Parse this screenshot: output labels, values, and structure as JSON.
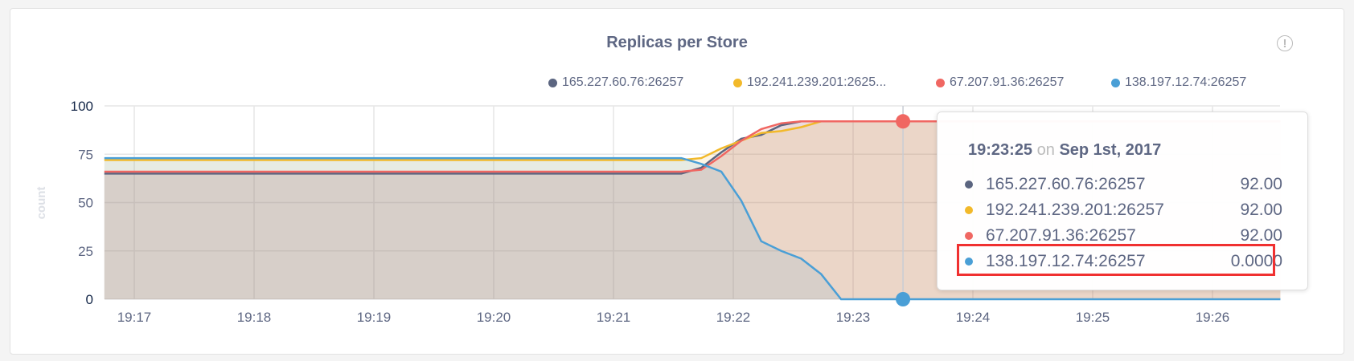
{
  "chart_data": {
    "type": "area",
    "title": "Replicas per Store",
    "xlabel": "",
    "ylabel": "count",
    "ylim": [
      0,
      100
    ],
    "yticks": [
      "0",
      "25",
      "50",
      "75",
      "100"
    ],
    "xlim": [
      "19:16:45",
      "19:26:34"
    ],
    "xticks": [
      "19:17",
      "19:18",
      "19:19",
      "19:20",
      "19:21",
      "19:22",
      "19:23",
      "19:24",
      "19:25",
      "19:26"
    ],
    "grid": true,
    "legend_position": "top-right",
    "series": [
      {
        "name": "165.227.60.76:26257",
        "legend_label": "165.227.60.76:26257",
        "color": "#5b6580",
        "x": [
          "19:16:45",
          "19:21:34",
          "19:21:44",
          "19:21:54",
          "19:22:04",
          "19:22:14",
          "19:22:24",
          "19:22:34",
          "19:26:34"
        ],
        "y": [
          65,
          65,
          68,
          76,
          83,
          85,
          90,
          92,
          92
        ]
      },
      {
        "name": "192.241.239.201:26257",
        "legend_label": "192.241.239.201:2625...",
        "color": "#f2b92a",
        "x": [
          "19:16:45",
          "19:21:34",
          "19:21:44",
          "19:21:54",
          "19:22:04",
          "19:22:14",
          "19:22:24",
          "19:22:34",
          "19:22:44",
          "19:26:34"
        ],
        "y": [
          72,
          72,
          73,
          78,
          82,
          86,
          87,
          89,
          92,
          92
        ]
      },
      {
        "name": "67.207.91.36:26257",
        "legend_label": "67.207.91.36:26257",
        "color": "#f06762",
        "x": [
          "19:16:45",
          "19:21:34",
          "19:21:44",
          "19:21:54",
          "19:22:04",
          "19:22:14",
          "19:22:24",
          "19:22:34",
          "19:26:34"
        ],
        "y": [
          66,
          66,
          67,
          74,
          82,
          88,
          91,
          92,
          92
        ]
      },
      {
        "name": "138.197.12.74:26257",
        "legend_label": "138.197.12.74:26257",
        "color": "#4a9fd6",
        "x": [
          "19:16:45",
          "19:21:34",
          "19:21:44",
          "19:21:54",
          "19:22:04",
          "19:22:14",
          "19:22:24",
          "19:22:34",
          "19:22:44",
          "19:22:54",
          "19:26:34"
        ],
        "y": [
          73,
          73,
          70,
          66,
          51,
          30,
          25,
          21,
          13,
          0,
          0
        ]
      }
    ],
    "cursor": "19:23:25"
  },
  "tooltip": {
    "time": "19:23:25",
    "on": "on",
    "date": "Sep 1st, 2017",
    "rows": [
      {
        "label": "165.227.60.76:26257",
        "value": "92.00",
        "color": "#5b6580"
      },
      {
        "label": "192.241.239.201:26257",
        "value": "92.00",
        "color": "#f2b92a"
      },
      {
        "label": "67.207.91.36:26257",
        "value": "92.00",
        "color": "#f06762"
      },
      {
        "label": "138.197.12.74:26257",
        "value": "0.0000",
        "color": "#4a9fd6",
        "highlighted": true
      }
    ]
  },
  "info_icon": "info-circle-icon",
  "info_glyph": "!"
}
